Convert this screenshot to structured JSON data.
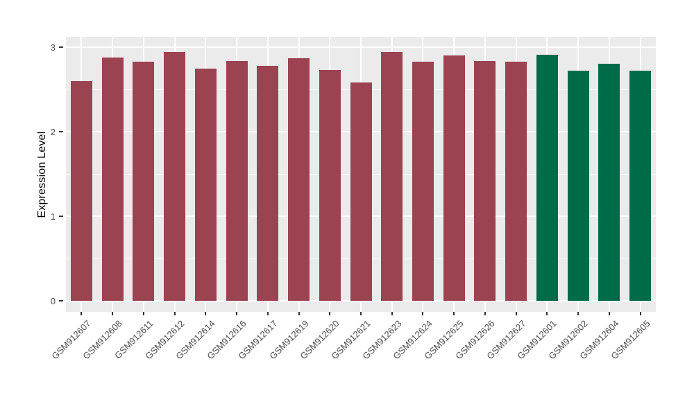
{
  "chart_data": {
    "type": "bar",
    "title": "",
    "xlabel": "",
    "ylabel": "Expression Level",
    "ylim": [
      0,
      3
    ],
    "yticks": [
      0,
      1,
      2,
      3
    ],
    "minor_gridlines": [
      0.5,
      1.5,
      2.5
    ],
    "grid": "on",
    "legend": "none",
    "categories": [
      "GSM912607",
      "GSM912608",
      "GSM912611",
      "GSM912612",
      "GSM912614",
      "GSM912616",
      "GSM912617",
      "GSM912619",
      "GSM912620",
      "GSM912621",
      "GSM912623",
      "GSM912624",
      "GSM912625",
      "GSM912626",
      "GSM912627",
      "GSM912601",
      "GSM912602",
      "GSM912604",
      "GSM912605"
    ],
    "values": [
      2.6,
      2.88,
      2.83,
      2.94,
      2.75,
      2.84,
      2.78,
      2.87,
      2.73,
      2.58,
      2.94,
      2.83,
      2.9,
      2.84,
      2.83,
      2.91,
      2.72,
      2.8,
      2.72
    ],
    "bar_groups": [
      "maroon",
      "maroon",
      "maroon",
      "maroon",
      "maroon",
      "maroon",
      "maroon",
      "maroon",
      "maroon",
      "maroon",
      "maroon",
      "maroon",
      "maroon",
      "maroon",
      "maroon",
      "green",
      "green",
      "green",
      "green"
    ],
    "colors": {
      "maroon": "#9c4351",
      "green": "#006b49",
      "panel_background": "#ebebeb",
      "gridline": "#ffffff",
      "tick_label": "#4d4d4d",
      "axis_title": "#000000",
      "tick_mark": "#333333"
    }
  }
}
